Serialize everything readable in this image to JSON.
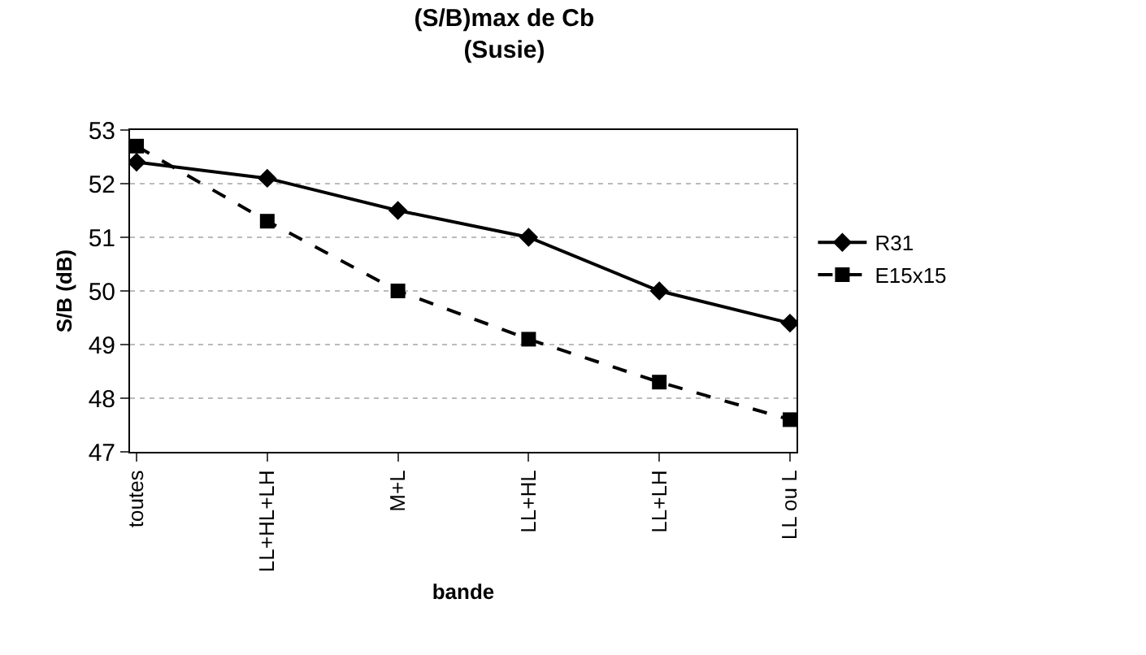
{
  "chart_data": {
    "type": "line",
    "title": "(S/B)max de Cb",
    "subtitle": "(Susie)",
    "xlabel": "bande",
    "ylabel": "S/B (dB)",
    "categories": [
      "toutes",
      "LL+HL+LH",
      "M+L",
      "LL+HL",
      "LL+LH",
      "LL ou L"
    ],
    "series": [
      {
        "name": "R31",
        "color": "#000000",
        "marker": "diamond",
        "line_style": "solid",
        "values": [
          52.4,
          52.1,
          51.5,
          51.0,
          50.0,
          49.4
        ]
      },
      {
        "name": "E15x15",
        "color": "#000000",
        "marker": "square",
        "line_style": "dashed",
        "values": [
          52.7,
          51.3,
          50.0,
          49.1,
          48.3,
          47.6
        ]
      }
    ],
    "ylim": [
      47,
      53
    ],
    "yticks": [
      47,
      48,
      49,
      50,
      51,
      52,
      53
    ],
    "grid": "y",
    "legend": "right"
  }
}
